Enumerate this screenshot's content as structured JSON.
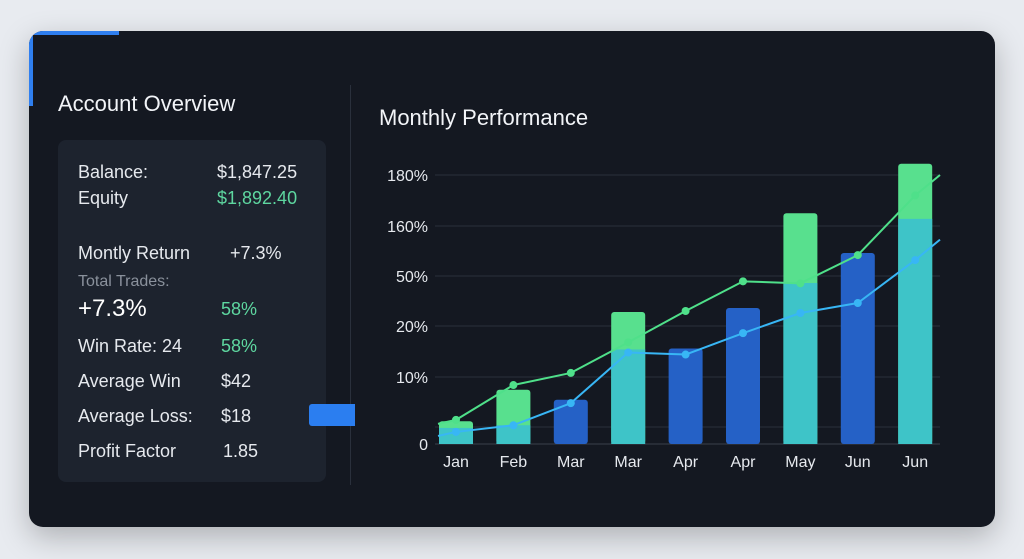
{
  "left": {
    "title": "Account Overview",
    "balance_label": "Balance:",
    "balance_value": "$1,847.25",
    "equity_label": "Equity",
    "equity_value": "$1,892.40",
    "monthly_return_label": "Montly Return",
    "monthly_return_value": "+7.3%",
    "total_trades_label": "Total Trades:",
    "overlay_return": "+7.3%",
    "overlay_pct": "58%",
    "win_rate_label": "Win Rate: 24",
    "win_rate_value": "58%",
    "avg_win_label": "Average Win",
    "avg_win_value": "$42",
    "avg_loss_label": "Average Loss:",
    "avg_loss_value": "$18",
    "profit_factor_label": "Profit Factor",
    "profit_factor_value": "1.85"
  },
  "chart_data": {
    "type": "bar",
    "title": "Monthly Performance",
    "categories": [
      "Jan",
      "Feb",
      "Mar",
      "Mar",
      "Apr",
      "Apr",
      "May",
      "Jun",
      "Jun"
    ],
    "y_ticks": [
      "0",
      "10%",
      "20%",
      "50%",
      "160%",
      "180%"
    ],
    "y_tick_values": [
      0,
      10,
      20,
      50,
      160,
      180
    ],
    "grid": true,
    "bars": [
      {
        "color": "green",
        "total": 3.4,
        "lower": 2.4
      },
      {
        "color": "green",
        "total": 8.1,
        "lower": 2.8
      },
      {
        "color": "blue",
        "total": 6.6,
        "lower": null
      },
      {
        "color": "green",
        "total": 28.4,
        "lower": 15.4
      },
      {
        "color": "blue",
        "total": 15.6,
        "lower": null
      },
      {
        "color": "blue",
        "total": 30.8,
        "lower": null
      },
      {
        "color": "green",
        "total": 165,
        "lower": 45.8
      },
      {
        "color": "blue",
        "total": 100.6,
        "lower": null
      },
      {
        "color": "green",
        "total": 184.4,
        "lower": 162.8
      }
    ],
    "series": [
      {
        "type": "line",
        "color": "#4fe08a",
        "values": [
          3.6,
          8.8,
          10.8,
          16.8,
          29,
          46.8,
          45.6,
          96,
          172
        ]
      },
      {
        "type": "line",
        "color": "#38b6f5",
        "values": [
          1.8,
          2.8,
          6.1,
          14.8,
          14.4,
          18.6,
          27.8,
          33.8,
          85
        ]
      }
    ],
    "colors": {
      "green": "#58e08e",
      "cyan": "#3ec4c8",
      "blue": "#2561c6"
    }
  }
}
